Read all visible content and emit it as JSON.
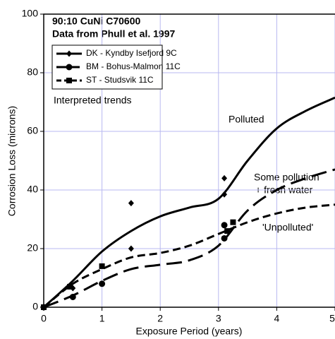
{
  "chart_data": {
    "type": "line",
    "title": "90:10 CuNi C70600",
    "subtitle": "Data from Phull et al. 1997",
    "x_label": "Exposure Period (years)",
    "y_label": "Corrosion Loss (microns)",
    "xlim": [
      0,
      5
    ],
    "ylim": [
      0,
      100
    ],
    "xticks": [
      0,
      1,
      2,
      3,
      4,
      5
    ],
    "yticks": [
      0,
      20,
      40,
      60,
      80,
      100
    ],
    "grid": true,
    "legend": "upper left",
    "annotations": [
      "Interpreted trends",
      "Polluted",
      "Some pollution",
      "+ fresh water",
      "'Unpolluted'"
    ],
    "series": [
      {
        "name": "DK - Kyndby Isefjord  9C",
        "color": "#000000",
        "dash": "solid",
        "marker": "diamond",
        "x": [
          0,
          0.5,
          1,
          1.5,
          2,
          2.5,
          3,
          3.5,
          4,
          4.5,
          5
        ],
        "values": [
          0,
          9,
          19,
          26,
          31,
          34,
          37,
          50,
          61,
          67,
          71.5
        ],
        "points": {
          "x": [
            0,
            0.5,
            1.5,
            1.5,
            3.1,
            3.1
          ],
          "y": [
            0,
            6.5,
            35.5,
            20,
            44,
            38.5
          ]
        }
      },
      {
        "name": "BM - Bohus-Malmon  11C",
        "color": "#000000",
        "dash": "long",
        "marker": "circle",
        "x": [
          0,
          0.5,
          1,
          1.5,
          2,
          2.5,
          3,
          3.5,
          4,
          4.5,
          5
        ],
        "values": [
          0,
          4,
          9,
          13,
          14.5,
          16,
          21,
          33,
          40,
          44,
          47
        ],
        "points": {
          "x": [
            0,
            0.5,
            1,
            3.1,
            3.1
          ],
          "y": [
            0,
            3.5,
            8,
            28,
            23.5
          ]
        }
      },
      {
        "name": "ST - Studsvik  11C",
        "color": "#000000",
        "dash": "medium",
        "marker": "square",
        "x": [
          0,
          0.5,
          1,
          1.5,
          2,
          2.5,
          3,
          3.5,
          4,
          4.5,
          5
        ],
        "values": [
          0,
          8,
          13,
          17,
          18.5,
          21,
          25,
          29,
          32,
          34,
          35
        ],
        "points": {
          "x": [
            0,
            0.45,
            1,
            3.15,
            3.25
          ],
          "y": [
            0,
            7,
            14,
            26,
            29
          ]
        }
      }
    ]
  }
}
